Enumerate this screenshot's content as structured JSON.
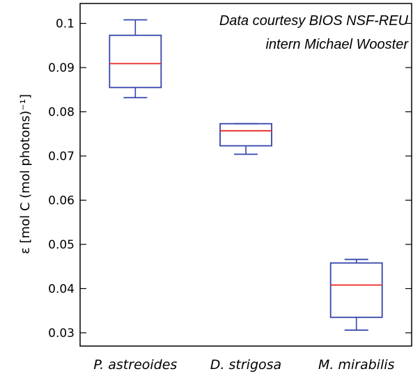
{
  "chart_data": {
    "type": "box",
    "categories": [
      "P. astreoides",
      "D. strigosa",
      "M. mirabilis"
    ],
    "boxes": [
      {
        "whisker_low": 0.0832,
        "q1": 0.0855,
        "median": 0.0909,
        "q3": 0.0973,
        "whisker_high": 0.1008
      },
      {
        "whisker_low": 0.0704,
        "q1": 0.0723,
        "median": 0.0757,
        "q3": 0.0773,
        "whisker_high": 0.0773
      },
      {
        "whisker_low": 0.0306,
        "q1": 0.0335,
        "median": 0.0408,
        "q3": 0.0458,
        "whisker_high": 0.0466
      }
    ],
    "ylabel": "ε [mol C (mol photons)⁻¹]",
    "ylim": [
      0.027,
      0.1045
    ],
    "yticks": [
      0.03,
      0.04,
      0.05,
      0.06,
      0.07,
      0.08,
      0.09,
      0.1
    ],
    "ytick_labels": [
      "0.03",
      "0.04",
      "0.05",
      "0.06",
      "0.07",
      "0.08",
      "0.09",
      "0.1"
    ],
    "annotation": [
      "Data courtesy BIOS NSF-REU",
      "intern Michael Wooster"
    ],
    "box_color": "#3344aa",
    "median_color": "#ee2222",
    "grid": false
  }
}
